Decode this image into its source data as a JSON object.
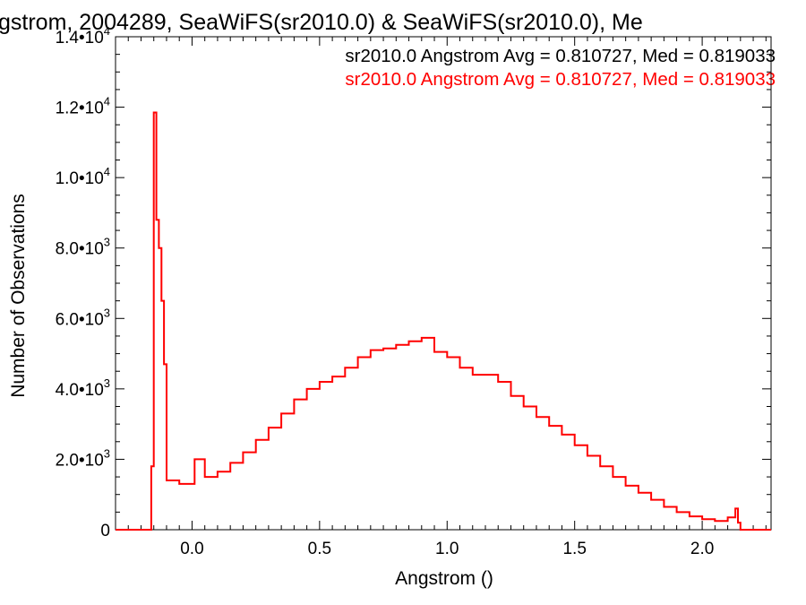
{
  "chart_data": {
    "type": "line",
    "step": true,
    "title": "gstrom, 2004289, SeaWiFS(sr2010.0) & SeaWiFS(sr2010.0), Me",
    "xlabel": "Angstrom ()",
    "ylabel": "Number of Observations",
    "xlim": [
      -0.3,
      2.27
    ],
    "ylim": [
      0,
      14000
    ],
    "xticks": [
      0.0,
      0.5,
      1.0,
      1.5,
      2.0
    ],
    "xtick_labels": [
      "0.0",
      "0.5",
      "1.0",
      "1.5",
      "2.0"
    ],
    "yticks": [
      0,
      2000,
      4000,
      6000,
      8000,
      10000,
      12000,
      14000
    ],
    "ytick_labels": [
      {
        "mantissa": "0",
        "exp": ""
      },
      {
        "mantissa": "2.0•10",
        "exp": "3"
      },
      {
        "mantissa": "4.0•10",
        "exp": "3"
      },
      {
        "mantissa": "6.0•10",
        "exp": "3"
      },
      {
        "mantissa": "8.0•10",
        "exp": "3"
      },
      {
        "mantissa": "1.0•10",
        "exp": "4"
      },
      {
        "mantissa": "1.2•10",
        "exp": "4"
      },
      {
        "mantissa": "1.4•10",
        "exp": "4"
      }
    ],
    "annotations": [
      {
        "text": "sr2010.0 Angstrom Avg = 0.810727, Med = 0.819033",
        "color": "#000000"
      },
      {
        "text": "sr2010.0 Angstrom Avg = 0.810727, Med = 0.819033",
        "color": "#ff0000"
      }
    ],
    "series": [
      {
        "color": "#ff0000",
        "x": [
          -0.3,
          -0.17,
          -0.16,
          -0.15,
          -0.14,
          -0.13,
          -0.12,
          -0.11,
          -0.1,
          -0.05,
          0.0,
          0.01,
          0.05,
          0.1,
          0.15,
          0.2,
          0.25,
          0.3,
          0.35,
          0.4,
          0.45,
          0.5,
          0.55,
          0.6,
          0.65,
          0.7,
          0.75,
          0.8,
          0.85,
          0.9,
          0.95,
          1.0,
          1.05,
          1.1,
          1.15,
          1.2,
          1.25,
          1.3,
          1.35,
          1.4,
          1.45,
          1.5,
          1.55,
          1.6,
          1.65,
          1.7,
          1.75,
          1.8,
          1.85,
          1.9,
          1.95,
          2.0,
          2.05,
          2.1,
          2.13,
          2.14,
          2.15,
          2.27
        ],
        "y": [
          0,
          0,
          1800,
          11850,
          8800,
          8000,
          6500,
          4700,
          1400,
          1300,
          1300,
          2000,
          1500,
          1650,
          1900,
          2200,
          2550,
          2900,
          3300,
          3700,
          4000,
          4200,
          4350,
          4600,
          4900,
          5100,
          5150,
          5250,
          5350,
          5450,
          5050,
          4900,
          4600,
          4400,
          4400,
          4200,
          3800,
          3500,
          3200,
          2950,
          2700,
          2400,
          2100,
          1800,
          1500,
          1250,
          1050,
          850,
          650,
          500,
          380,
          300,
          250,
          350,
          600,
          200,
          0,
          0
        ]
      }
    ]
  }
}
